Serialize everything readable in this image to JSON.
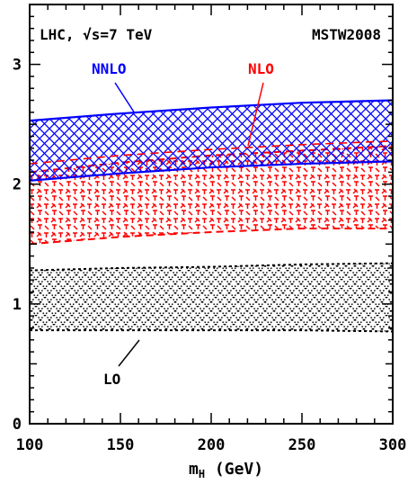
{
  "chart_data": {
    "type": "area",
    "title_left": "LHC, √s=7 TeV",
    "title_right": "MSTW2008",
    "xlabel_main": "m",
    "xlabel_sub": "H",
    "xlabel_unit": " (GeV)",
    "xlim": [
      100,
      300
    ],
    "ylim": [
      0,
      3.5
    ],
    "x_ticks": [
      100,
      150,
      200,
      250,
      300
    ],
    "y_ticks": [
      0,
      1,
      2,
      3
    ],
    "series": [
      {
        "name": "LO",
        "color": "#000000",
        "pattern": "dotted crosshatch",
        "x": [
          100,
          150,
          200,
          250,
          300
        ],
        "upper": [
          1.28,
          1.3,
          1.31,
          1.33,
          1.34
        ],
        "lower": [
          0.78,
          0.78,
          0.78,
          0.78,
          0.77
        ]
      },
      {
        "name": "NLO",
        "color": "#ff0000",
        "pattern": "dashed crosshatch",
        "x": [
          100,
          150,
          200,
          250,
          300
        ],
        "upper": [
          2.1,
          2.18,
          2.24,
          2.28,
          2.32
        ],
        "lower": [
          1.5,
          1.56,
          1.6,
          1.63,
          1.63
        ],
        "central": [
          2.17,
          2.24,
          2.29,
          2.33,
          2.36
        ]
      },
      {
        "name": "NNLO",
        "color": "#0000ff",
        "pattern": "crosshatch",
        "x": [
          100,
          150,
          200,
          250,
          300
        ],
        "upper": [
          2.53,
          2.59,
          2.64,
          2.68,
          2.7
        ],
        "lower": [
          2.03,
          2.09,
          2.14,
          2.17,
          2.19
        ]
      }
    ],
    "annotations": [
      {
        "text": "NNLO",
        "color": "#0000ff"
      },
      {
        "text": "NLO",
        "color": "#ff0000"
      },
      {
        "text": "LO",
        "color": "#000000"
      }
    ]
  }
}
